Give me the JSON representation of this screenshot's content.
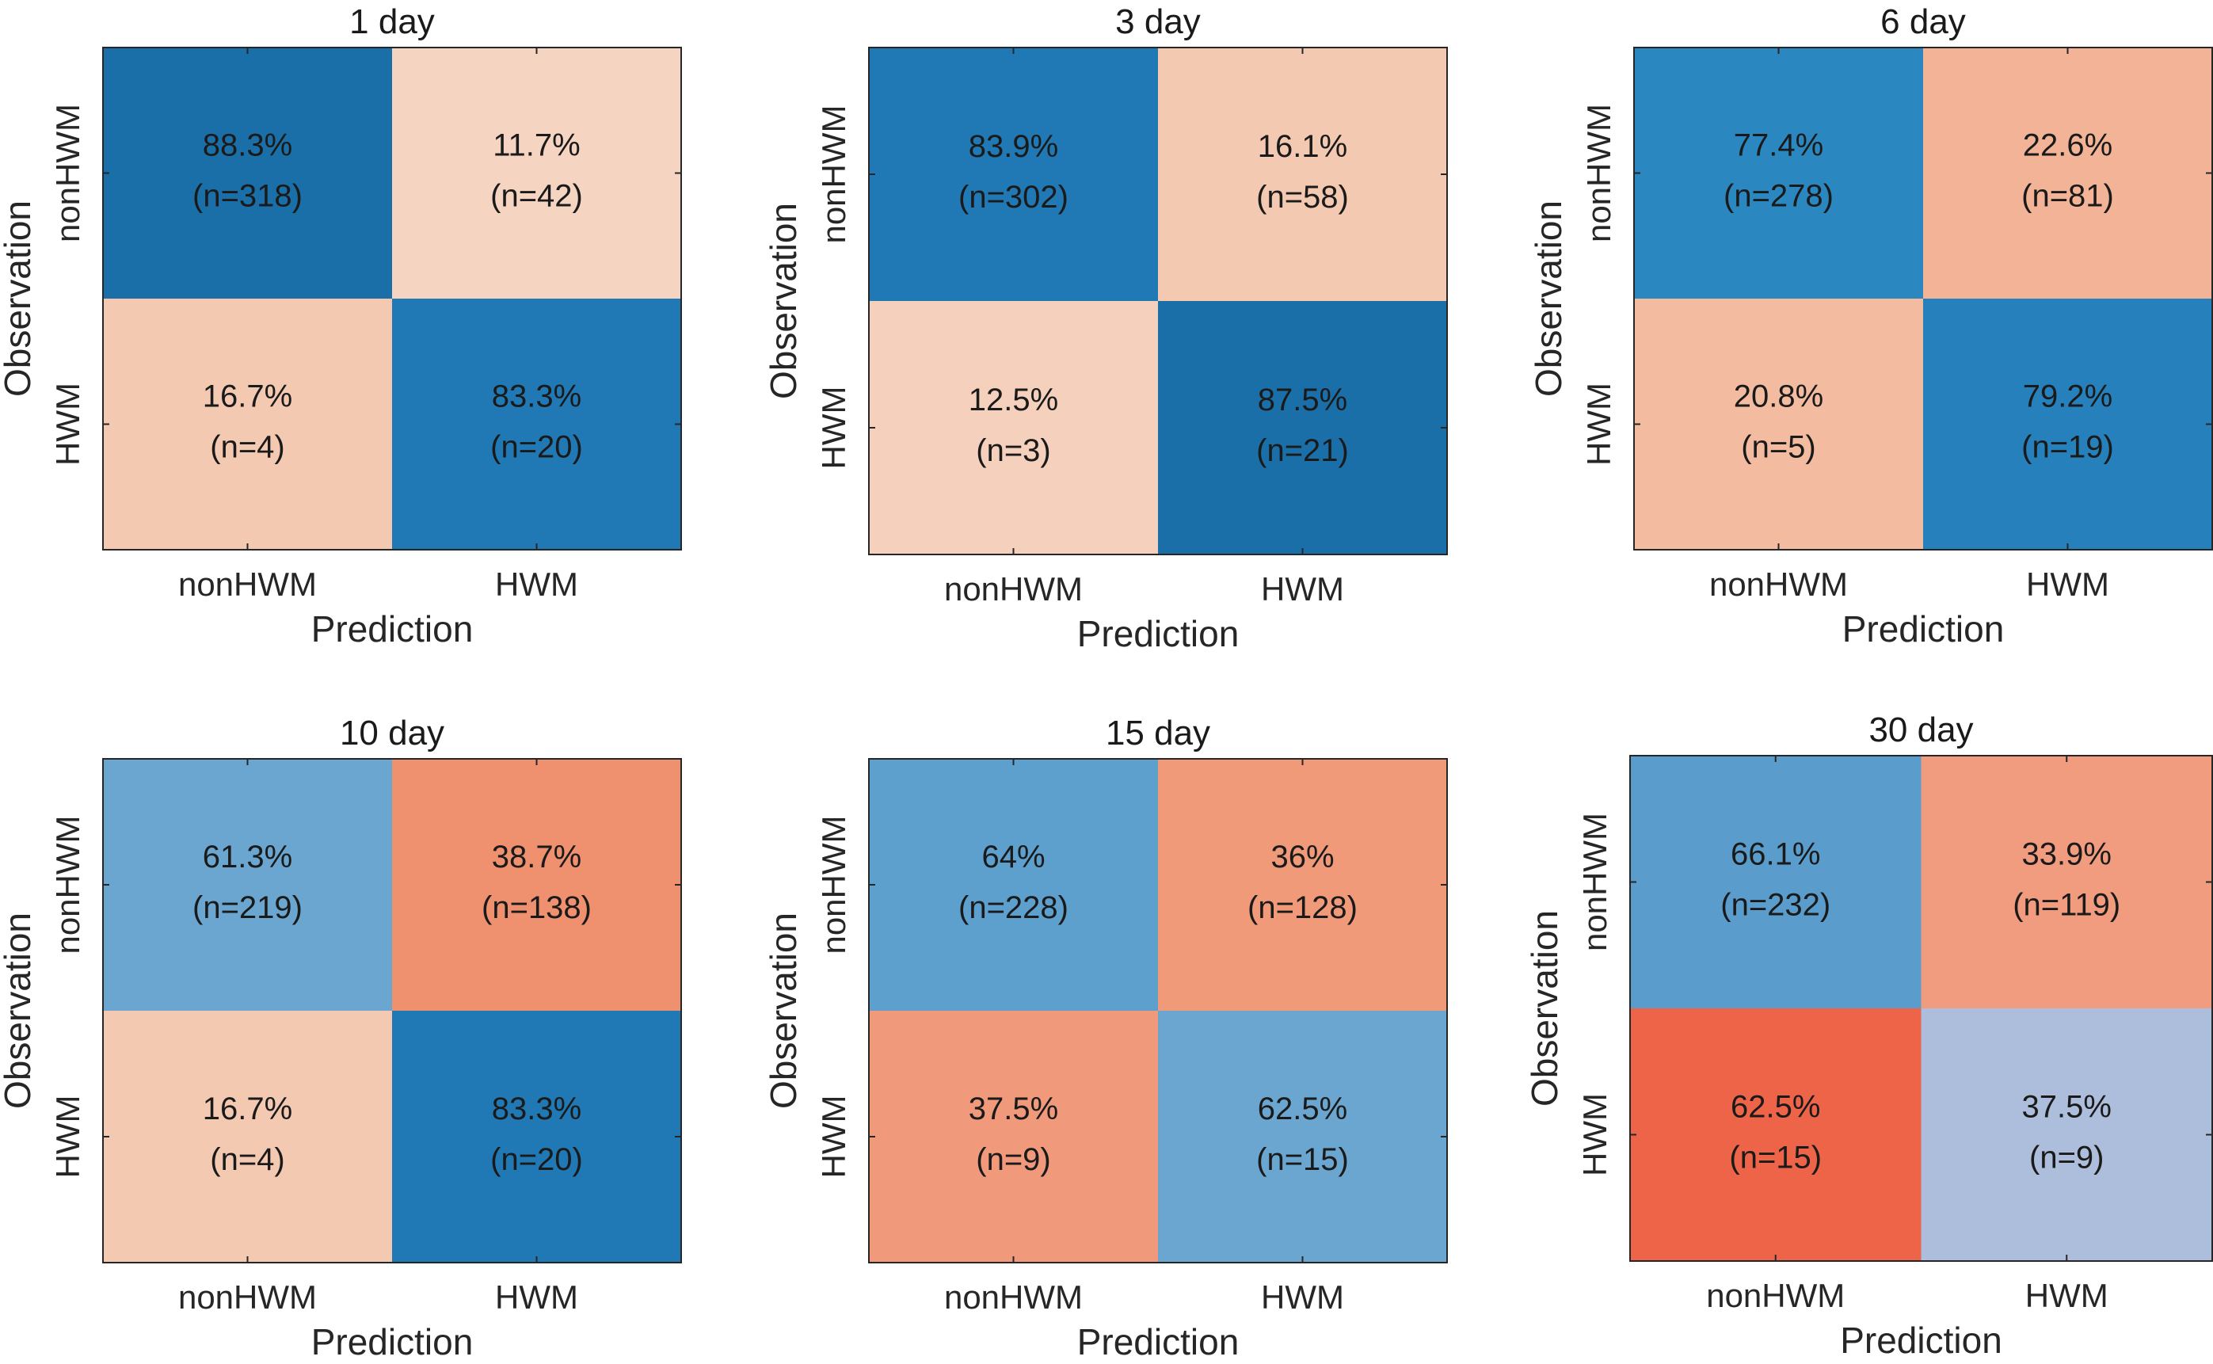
{
  "chart_data": [
    {
      "type": "heatmap",
      "title": "1 day",
      "xlabel": "Prediction",
      "ylabel": "Observation",
      "x_categories": [
        "nonHWM",
        "HWM"
      ],
      "y_categories": [
        "nonHWM",
        "HWM"
      ],
      "cells": [
        [
          {
            "pct": "88.3%",
            "n": "(n=318)",
            "color": "#1a6fa8"
          },
          {
            "pct": "11.7%",
            "n": "(n=42)",
            "color": "#f5d4c2"
          }
        ],
        [
          {
            "pct": "16.7%",
            "n": "(n=4)",
            "color": "#f4c9b2"
          },
          {
            "pct": "83.3%",
            "n": "(n=20)",
            "color": "#2079b4"
          }
        ]
      ]
    },
    {
      "type": "heatmap",
      "title": "3 day",
      "xlabel": "Prediction",
      "ylabel": "Observation",
      "x_categories": [
        "nonHWM",
        "HWM"
      ],
      "y_categories": [
        "nonHWM",
        "HWM"
      ],
      "cells": [
        [
          {
            "pct": "83.9%",
            "n": "(n=302)",
            "color": "#2079b4"
          },
          {
            "pct": "16.1%",
            "n": "(n=58)",
            "color": "#f4c9b2"
          }
        ],
        [
          {
            "pct": "12.5%",
            "n": "(n=3)",
            "color": "#f5d1bd"
          },
          {
            "pct": "87.5%",
            "n": "(n=21)",
            "color": "#1a6fa8"
          }
        ]
      ]
    },
    {
      "type": "heatmap",
      "title": "6 day",
      "xlabel": "Prediction",
      "ylabel": "Observation",
      "x_categories": [
        "nonHWM",
        "HWM"
      ],
      "y_categories": [
        "nonHWM",
        "HWM"
      ],
      "cells": [
        [
          {
            "pct": "77.4%",
            "n": "(n=278)",
            "color": "#2b87c0"
          },
          {
            "pct": "22.6%",
            "n": "(n=81)",
            "color": "#f2b396"
          }
        ],
        [
          {
            "pct": "20.8%",
            "n": "(n=5)",
            "color": "#f3bca1"
          },
          {
            "pct": "79.2%",
            "n": "(n=19)",
            "color": "#2580bb"
          }
        ]
      ]
    },
    {
      "type": "heatmap",
      "title": "10 day",
      "xlabel": "Prediction",
      "ylabel": "Observation",
      "x_categories": [
        "nonHWM",
        "HWM"
      ],
      "y_categories": [
        "nonHWM",
        "HWM"
      ],
      "cells": [
        [
          {
            "pct": "61.3%",
            "n": "(n=219)",
            "color": "#6aa6d0"
          },
          {
            "pct": "38.7%",
            "n": "(n=138)",
            "color": "#ef906f"
          }
        ],
        [
          {
            "pct": "16.7%",
            "n": "(n=4)",
            "color": "#f4c9b2"
          },
          {
            "pct": "83.3%",
            "n": "(n=20)",
            "color": "#2079b4"
          }
        ]
      ]
    },
    {
      "type": "heatmap",
      "title": "15 day",
      "xlabel": "Prediction",
      "ylabel": "Observation",
      "x_categories": [
        "nonHWM",
        "HWM"
      ],
      "y_categories": [
        "nonHWM",
        "HWM"
      ],
      "cells": [
        [
          {
            "pct": "64%",
            "n": "(n=228)",
            "color": "#5d9fcd"
          },
          {
            "pct": "36%",
            "n": "(n=128)",
            "color": "#f19a7a"
          }
        ],
        [
          {
            "pct": "37.5%",
            "n": "(n=9)",
            "color": "#f09a7b"
          },
          {
            "pct": "62.5%",
            "n": "(n=15)",
            "color": "#6aa6cf"
          }
        ]
      ]
    },
    {
      "type": "heatmap",
      "title": "30 day",
      "xlabel": "Prediction",
      "ylabel": "Observation",
      "x_categories": [
        "nonHWM",
        "HWM"
      ],
      "y_categories": [
        "nonHWM",
        "HWM"
      ],
      "cells": [
        [
          {
            "pct": "66.1%",
            "n": "(n=232)",
            "color": "#5a9ccb"
          },
          {
            "pct": "33.9%",
            "n": "(n=119)",
            "color": "#f19c7e"
          }
        ],
        [
          {
            "pct": "62.5%",
            "n": "(n=15)",
            "color": "#ed6448"
          },
          {
            "pct": "37.5%",
            "n": "(n=9)",
            "color": "#adbddc"
          }
        ]
      ]
    }
  ]
}
